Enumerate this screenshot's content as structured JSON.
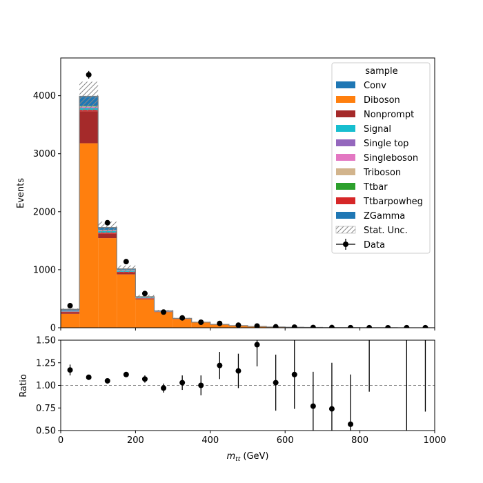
{
  "chart_data": [
    {
      "type": "bar",
      "subtype": "stacked-histogram",
      "bin_edges": [
        0,
        50,
        100,
        150,
        200,
        250,
        300,
        350,
        400,
        450,
        500,
        550,
        600,
        650,
        700,
        750,
        800,
        850,
        900,
        950,
        1000
      ],
      "ylabel": "Events",
      "xlim": [
        0,
        1000
      ],
      "ylim": [
        0,
        4650
      ],
      "xticks": [
        0,
        200,
        400,
        600,
        800,
        1000
      ],
      "yticks": [
        0,
        1000,
        2000,
        3000,
        4000
      ],
      "stack": [
        {
          "name": "Diboson",
          "color": "#ff7f0e",
          "values": [
            240,
            3180,
            1545,
            920,
            490,
            270,
            150,
            90,
            55,
            35,
            22,
            14,
            9,
            6,
            4,
            3,
            2,
            1.5,
            1,
            1
          ]
        },
        {
          "name": "Nonprompt",
          "color": "#a52a2a",
          "values": [
            30,
            550,
            75,
            30,
            12,
            5,
            3,
            2,
            1,
            1,
            0,
            0,
            0,
            0,
            0,
            0,
            0,
            0,
            0,
            0
          ]
        },
        {
          "name": "Ttbarpowheg",
          "color": "#d62728",
          "values": [
            8,
            25,
            20,
            15,
            8,
            4,
            2,
            1,
            1,
            0,
            0,
            0,
            0,
            0,
            0,
            0,
            0,
            0,
            0,
            0
          ]
        },
        {
          "name": "Signal",
          "color": "#17becf",
          "values": [
            5,
            30,
            25,
            18,
            10,
            5,
            3,
            2,
            1,
            1,
            0,
            0,
            0,
            0,
            0,
            0,
            0,
            0,
            0,
            0
          ]
        },
        {
          "name": "Single top",
          "color": "#9467bd",
          "values": [
            3,
            10,
            8,
            6,
            3,
            2,
            1,
            1,
            0,
            0,
            0,
            0,
            0,
            0,
            0,
            0,
            0,
            0,
            0,
            0
          ]
        },
        {
          "name": "Singleboson",
          "color": "#e377c2",
          "values": [
            3,
            12,
            7,
            4,
            2,
            1,
            1,
            0,
            0,
            0,
            0,
            0,
            0,
            0,
            0,
            0,
            0,
            0,
            0,
            0
          ]
        },
        {
          "name": "Triboson",
          "color": "#d2b48c",
          "values": [
            2,
            8,
            5,
            4,
            2,
            1,
            1,
            0,
            0,
            0,
            0,
            0,
            0,
            0,
            0,
            0,
            0,
            0,
            0,
            0
          ]
        },
        {
          "name": "Ttbar",
          "color": "#2ca02c",
          "values": [
            2,
            6,
            4,
            3,
            2,
            1,
            0,
            0,
            0,
            0,
            0,
            0,
            0,
            0,
            0,
            0,
            0,
            0,
            0,
            0
          ]
        },
        {
          "name": "ZGamma",
          "color": "#1f77b4",
          "values": [
            15,
            150,
            30,
            10,
            5,
            2,
            1,
            0,
            0,
            0,
            0,
            0,
            0,
            0,
            0,
            0,
            0,
            0,
            0,
            0
          ]
        },
        {
          "name": "Conv",
          "color": "#1f77b4",
          "values": [
            10,
            20,
            10,
            5,
            3,
            1,
            0,
            0,
            0,
            0,
            0,
            0,
            0,
            0,
            0,
            0,
            0,
            0,
            0,
            0
          ]
        }
      ],
      "stat_unc": {
        "name": "Stat. Unc.",
        "values": [
          15,
          250,
          100,
          60,
          30,
          15,
          10,
          8,
          5,
          4,
          3,
          2,
          2,
          1,
          1,
          1,
          1,
          1,
          1,
          1
        ]
      },
      "data": {
        "name": "Data",
        "x": [
          25,
          75,
          125,
          175,
          225,
          275,
          325,
          375,
          425,
          475,
          525,
          575,
          625,
          675,
          725,
          775,
          825,
          875,
          925,
          975
        ],
        "y": [
          380,
          4360,
          1810,
          1140,
          590,
          270,
          170,
          95,
          75,
          45,
          30,
          16,
          11,
          5,
          4,
          2,
          1,
          0,
          1,
          1
        ],
        "yerr": [
          20,
          66,
          43,
          34,
          24,
          16,
          13,
          10,
          9,
          7,
          5,
          4,
          3,
          2,
          2,
          1.4,
          1,
          0,
          1,
          1
        ]
      },
      "legend": {
        "title": "sample",
        "placement": "top-right",
        "entries": [
          "Conv",
          "Diboson",
          "Nonprompt",
          "Signal",
          "Single top",
          "Singleboson",
          "Triboson",
          "Ttbar",
          "Ttbarpowheg",
          "ZGamma",
          "Stat. Unc.",
          "Data"
        ]
      }
    },
    {
      "type": "scatter",
      "subtype": "ratio",
      "ylabel": "Ratio",
      "xlabel": "m_tt (GeV)",
      "xlim": [
        0,
        1000
      ],
      "ylim": [
        0.5,
        1.5
      ],
      "xticks": [
        0,
        200,
        400,
        600,
        800,
        1000
      ],
      "yticks": [
        "0.50",
        "0.75",
        "1.00",
        "1.25",
        "1.50"
      ],
      "reference_line": 1.0,
      "points": [
        {
          "x": 25,
          "y": 1.17,
          "err": 0.06
        },
        {
          "x": 75,
          "y": 1.09,
          "err": 0.02
        },
        {
          "x": 125,
          "y": 1.05,
          "err": 0.02
        },
        {
          "x": 175,
          "y": 1.12,
          "err": 0.02
        },
        {
          "x": 225,
          "y": 1.07,
          "err": 0.04
        },
        {
          "x": 275,
          "y": 0.97,
          "err": 0.05
        },
        {
          "x": 325,
          "y": 1.03,
          "err": 0.08
        },
        {
          "x": 375,
          "y": 1.0,
          "err": 0.11
        },
        {
          "x": 425,
          "y": 1.22,
          "err": 0.15
        },
        {
          "x": 475,
          "y": 1.16,
          "err": 0.19
        },
        {
          "x": 525,
          "y": 1.45,
          "err": 0.24
        },
        {
          "x": 575,
          "y": 1.03,
          "err": 0.31
        },
        {
          "x": 625,
          "y": 1.12,
          "err": 0.38
        },
        {
          "x": 675,
          "y": 0.77,
          "err": 0.38
        },
        {
          "x": 725,
          "y": 0.74,
          "err": 0.51
        },
        {
          "x": 775,
          "y": 0.57,
          "err": 0.55
        },
        {
          "x": 825,
          "y": null,
          "err_low": 0.93,
          "err_high": 1.5
        },
        {
          "x": 925,
          "y": null,
          "err_low": 0.5,
          "err_high": 1.5
        },
        {
          "x": 975,
          "y": null,
          "err_low": 0.71,
          "err_high": 1.5
        }
      ]
    }
  ]
}
